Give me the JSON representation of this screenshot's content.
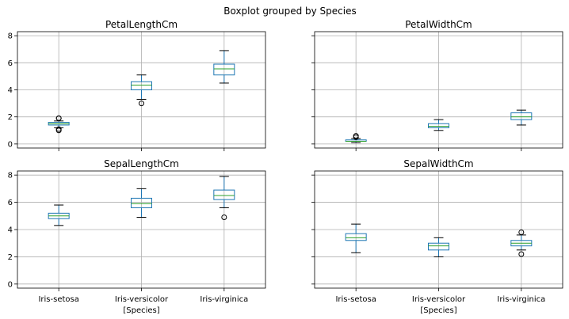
{
  "chart_data": {
    "type": "boxplot",
    "suptitle": "Boxplot grouped by Species",
    "categories": [
      "Iris-setosa",
      "Iris-versicolor",
      "Iris-virginica"
    ],
    "xlabel": "[Species]",
    "ylim": [
      -0.3,
      8.3
    ],
    "yticks": [
      0,
      2,
      4,
      6,
      8
    ],
    "grid": true,
    "sharey": true,
    "panels": [
      {
        "title": "PetalLengthCm",
        "boxes": [
          {
            "whislo": 1.2,
            "q1": 1.4,
            "med": 1.5,
            "q3": 1.6,
            "whishi": 1.7,
            "fliers": [
              1.0,
              1.1,
              1.9,
              1.9
            ]
          },
          {
            "whislo": 3.3,
            "q1": 4.0,
            "med": 4.35,
            "q3": 4.6,
            "whishi": 5.1,
            "fliers": [
              3.0
            ]
          },
          {
            "whislo": 4.5,
            "q1": 5.1,
            "med": 5.55,
            "q3": 5.9,
            "whishi": 6.9,
            "fliers": []
          }
        ]
      },
      {
        "title": "PetalWidthCm",
        "boxes": [
          {
            "whislo": 0.1,
            "q1": 0.2,
            "med": 0.2,
            "q3": 0.3,
            "whishi": 0.4,
            "fliers": [
              0.5,
              0.6
            ]
          },
          {
            "whislo": 1.0,
            "q1": 1.2,
            "med": 1.3,
            "q3": 1.5,
            "whishi": 1.8,
            "fliers": []
          },
          {
            "whislo": 1.4,
            "q1": 1.8,
            "med": 2.0,
            "q3": 2.3,
            "whishi": 2.5,
            "fliers": []
          }
        ]
      },
      {
        "title": "SepalLengthCm",
        "boxes": [
          {
            "whislo": 4.3,
            "q1": 4.8,
            "med": 5.0,
            "q3": 5.2,
            "whishi": 5.8,
            "fliers": []
          },
          {
            "whislo": 4.9,
            "q1": 5.6,
            "med": 5.9,
            "q3": 6.3,
            "whishi": 7.0,
            "fliers": []
          },
          {
            "whislo": 5.6,
            "q1": 6.2,
            "med": 6.5,
            "q3": 6.9,
            "whishi": 7.9,
            "fliers": [
              4.9
            ]
          }
        ]
      },
      {
        "title": "SepalWidthCm",
        "boxes": [
          {
            "whislo": 2.3,
            "q1": 3.2,
            "med": 3.4,
            "q3": 3.7,
            "whishi": 4.4,
            "fliers": []
          },
          {
            "whislo": 2.0,
            "q1": 2.5,
            "med": 2.8,
            "q3": 3.0,
            "whishi": 3.4,
            "fliers": []
          },
          {
            "whislo": 2.5,
            "q1": 2.8,
            "med": 3.0,
            "q3": 3.2,
            "whishi": 3.6,
            "fliers": [
              3.8,
              2.2
            ]
          }
        ]
      }
    ]
  }
}
